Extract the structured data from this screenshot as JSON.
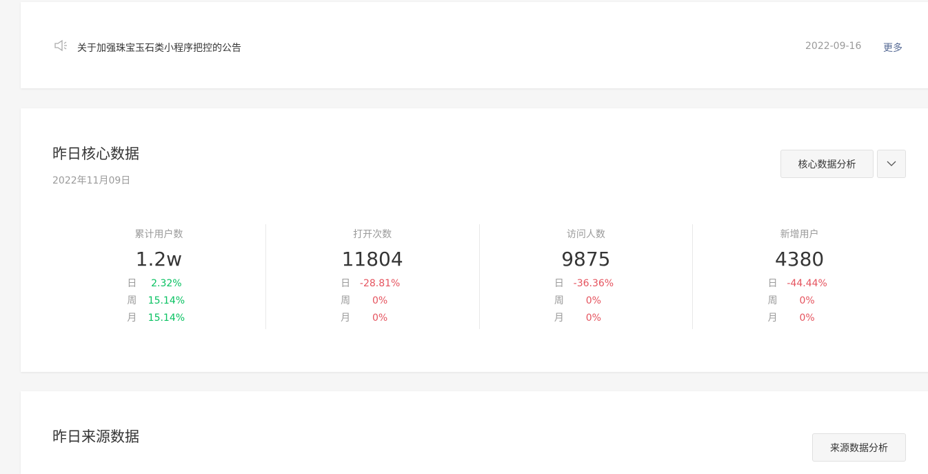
{
  "notice": {
    "icon": "speaker-icon",
    "text": "关于加强珠宝玉石类小程序把控的公告",
    "date": "2022-09-16",
    "more": "更多"
  },
  "core": {
    "title": "昨日核心数据",
    "date": "2022年11月09日",
    "analysis_button": "核心数据分析",
    "dropdown_icon": "chevron-down-icon",
    "metrics": [
      {
        "label": "累计用户数",
        "value": "1.2w",
        "rows": [
          {
            "k": "日",
            "v": "2.32%"
          },
          {
            "k": "周",
            "v": "15.14%"
          },
          {
            "k": "月",
            "v": "15.14%"
          }
        ],
        "trend_color": "#07c160"
      },
      {
        "label": "打开次数",
        "value": "11804",
        "rows": [
          {
            "k": "日",
            "v": "-28.81%"
          },
          {
            "k": "周",
            "v": "0%"
          },
          {
            "k": "月",
            "v": "0%"
          }
        ],
        "trend_color": "#e5535e"
      },
      {
        "label": "访问人数",
        "value": "9875",
        "rows": [
          {
            "k": "日",
            "v": "-36.36%"
          },
          {
            "k": "周",
            "v": "0%"
          },
          {
            "k": "月",
            "v": "0%"
          }
        ],
        "trend_color": "#e5535e"
      },
      {
        "label": "新增用户",
        "value": "4380",
        "rows": [
          {
            "k": "日",
            "v": "-44.44%"
          },
          {
            "k": "周",
            "v": "0%"
          },
          {
            "k": "月",
            "v": "0%"
          }
        ],
        "trend_color": "#e5535e"
      }
    ]
  },
  "source": {
    "title": "昨日来源数据",
    "analysis_button": "来源数据分析"
  }
}
